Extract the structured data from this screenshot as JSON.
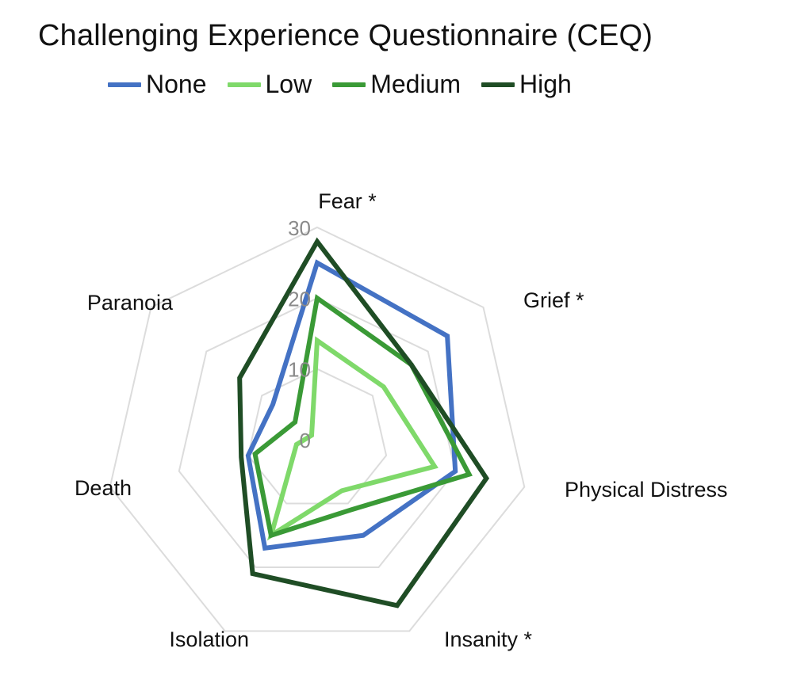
{
  "chart_data": {
    "type": "radar",
    "title": "Challenging Experience Questionnaire (CEQ)",
    "legend_position": "top",
    "axes": [
      "Fear *",
      "Grief *",
      "Physical Distress",
      "Insanity *",
      "Isolation",
      "Death",
      "Paranoia"
    ],
    "rlim": [
      0,
      30
    ],
    "ticks": [
      0,
      10,
      20,
      30
    ],
    "tick_labels": [
      "0",
      "10",
      "20",
      "30"
    ],
    "grid": true,
    "series": [
      {
        "name": "None",
        "color": "#4472C4",
        "values": [
          25,
          23.5,
          20,
          15,
          17,
          10,
          8
        ]
      },
      {
        "name": "Low",
        "color": "#7FD96A",
        "values": [
          14,
          12,
          17,
          8,
          15,
          3,
          1
        ]
      },
      {
        "name": "Medium",
        "color": "#3A9A36",
        "values": [
          20,
          17,
          22,
          11,
          15,
          9,
          4
        ]
      },
      {
        "name": "High",
        "color": "#1F4D25",
        "values": [
          28,
          17,
          24.5,
          26,
          21,
          11,
          14
        ]
      }
    ]
  }
}
